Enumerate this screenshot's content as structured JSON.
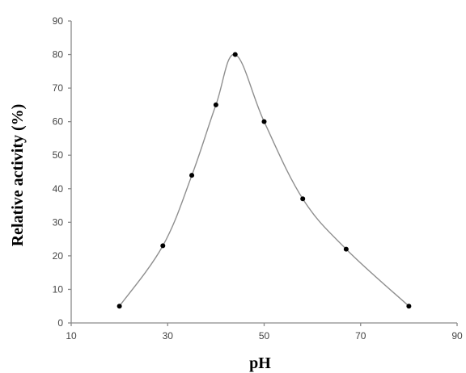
{
  "chart_data": {
    "type": "line",
    "title": "",
    "xlabel": "pH",
    "ylabel": "Relative activity (%)",
    "xlim": [
      10,
      90
    ],
    "ylim": [
      0,
      90
    ],
    "x_ticks": [
      10,
      30,
      50,
      70,
      90
    ],
    "y_ticks": [
      0,
      10,
      20,
      30,
      40,
      50,
      60,
      70,
      80,
      90
    ],
    "grid": false,
    "legend": "none",
    "line_color": "#8f8f8f",
    "marker_color": "#000000",
    "series": [
      {
        "x": [
          20,
          29,
          35,
          40,
          44,
          50,
          58,
          67,
          80
        ],
        "y": [
          5,
          23,
          44,
          65,
          80,
          60,
          37,
          22,
          5
        ]
      }
    ]
  }
}
